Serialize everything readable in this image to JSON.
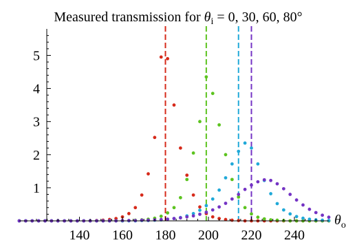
{
  "chart_data": {
    "type": "scatter",
    "title": "Measured transmission for θi = 0, 30, 60, 80°",
    "title_parts": {
      "prefix": "Measured transmission for ",
      "symbol": "θ",
      "subscript": "i",
      "rest": " = 0, 30, 60, 80°"
    },
    "xlabel": "θo",
    "xlabel_parts": {
      "symbol": "θ",
      "subscript": "o"
    },
    "ylabel": "",
    "xlim": [
      112,
      256
    ],
    "ylim": [
      0,
      5.8
    ],
    "x_ticks": [
      140,
      160,
      180,
      200,
      220,
      240
    ],
    "y_ticks": [
      1,
      2,
      3,
      4,
      5
    ],
    "grid": false,
    "legend": "none",
    "series": [
      {
        "color": "#d62a1a",
        "reference_x": 180,
        "x": [
          112,
          115,
          118,
          121,
          124,
          127,
          130,
          133,
          136,
          139,
          142,
          145,
          148,
          151,
          154,
          157,
          160,
          163,
          166,
          169,
          172,
          175,
          178,
          181,
          184,
          187,
          190,
          193,
          196,
          199,
          202,
          205,
          208,
          211,
          214,
          217,
          220,
          223,
          226,
          229,
          232,
          235,
          238,
          241,
          244,
          247,
          250,
          253,
          256
        ],
        "y": [
          0,
          0,
          0,
          0,
          0,
          0,
          0,
          0,
          0,
          0,
          0,
          0,
          0.01,
          0.02,
          0.04,
          0.07,
          0.12,
          0.22,
          0.4,
          0.78,
          1.42,
          2.52,
          4.95,
          4.9,
          3.5,
          2.2,
          1.38,
          0.78,
          0.42,
          0.22,
          0.12,
          0.07,
          0.04,
          0.02,
          0.01,
          0,
          0,
          0,
          0,
          0,
          0,
          0,
          0,
          0,
          0,
          0,
          0,
          0,
          0
        ]
      },
      {
        "color": "#5cc31f",
        "reference_x": 199,
        "x": [
          112,
          115,
          118,
          121,
          124,
          127,
          130,
          133,
          136,
          139,
          142,
          145,
          148,
          151,
          154,
          157,
          160,
          163,
          166,
          169,
          172,
          175,
          178,
          181,
          184,
          187,
          190,
          193,
          196,
          199,
          202,
          205,
          208,
          211,
          214,
          217,
          220,
          223,
          226,
          229,
          232,
          235,
          238,
          241,
          244,
          247,
          250,
          253,
          256
        ],
        "y": [
          0,
          0,
          0,
          0,
          0,
          0,
          0,
          0,
          0,
          0,
          0,
          0,
          0,
          0,
          0,
          0,
          0,
          0.01,
          0.02,
          0.03,
          0.05,
          0.08,
          0.14,
          0.24,
          0.4,
          0.7,
          1.25,
          2.05,
          3.0,
          4.35,
          3.85,
          2.9,
          2.0,
          1.25,
          0.72,
          0.4,
          0.21,
          0.11,
          0.06,
          0.03,
          0.02,
          0.01,
          0,
          0,
          0,
          0,
          0,
          0,
          0
        ]
      },
      {
        "color": "#20a9d8",
        "reference_x": 214,
        "x": [
          112,
          115,
          118,
          121,
          124,
          127,
          130,
          133,
          136,
          139,
          142,
          145,
          148,
          151,
          154,
          157,
          160,
          163,
          166,
          169,
          172,
          175,
          178,
          181,
          184,
          187,
          190,
          193,
          196,
          199,
          202,
          205,
          208,
          211,
          214,
          217,
          220,
          223,
          226,
          229,
          232,
          235,
          238,
          241,
          244,
          247,
          250,
          253,
          256
        ],
        "y": [
          0,
          0,
          0,
          0,
          0,
          0,
          0,
          0,
          0,
          0,
          0,
          0,
          0,
          0,
          0,
          0,
          0,
          0,
          0,
          0.01,
          0.01,
          0.02,
          0.03,
          0.05,
          0.07,
          0.1,
          0.15,
          0.22,
          0.32,
          0.46,
          0.66,
          0.93,
          1.3,
          1.72,
          2.1,
          2.35,
          2.2,
          1.72,
          1.22,
          0.82,
          0.52,
          0.33,
          0.21,
          0.13,
          0.08,
          0.05,
          0.03,
          0.02,
          0.01
        ]
      },
      {
        "color": "#7433c4",
        "reference_x": 220,
        "x": [
          112,
          115,
          118,
          121,
          124,
          127,
          130,
          133,
          136,
          139,
          142,
          145,
          148,
          151,
          154,
          157,
          160,
          163,
          166,
          169,
          172,
          175,
          178,
          181,
          184,
          187,
          190,
          193,
          196,
          199,
          202,
          205,
          208,
          211,
          214,
          217,
          220,
          223,
          226,
          229,
          232,
          235,
          238,
          241,
          244,
          247,
          250,
          253,
          256
        ],
        "y": [
          0,
          0,
          0,
          0,
          0,
          0,
          0,
          0,
          0,
          0,
          0,
          0,
          0,
          0,
          0,
          0,
          0.01,
          0.01,
          0.01,
          0.02,
          0.02,
          0.03,
          0.04,
          0.05,
          0.07,
          0.09,
          0.12,
          0.15,
          0.2,
          0.26,
          0.33,
          0.42,
          0.53,
          0.66,
          0.8,
          0.95,
          1.08,
          1.18,
          1.24,
          1.22,
          1.12,
          0.97,
          0.8,
          0.63,
          0.48,
          0.35,
          0.25,
          0.17,
          0.11
        ]
      }
    ]
  }
}
